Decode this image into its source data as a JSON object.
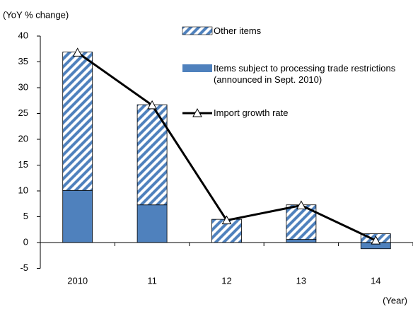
{
  "chart_data": {
    "type": "bar",
    "y_label": "(YoY % change)",
    "x_label": "(Year)",
    "categories": [
      "2010",
      "11",
      "12",
      "13",
      "14"
    ],
    "series": [
      {
        "name": "Items subject to processing trade restrictions (announced in Sept. 2010)",
        "type": "bar",
        "color": "#4f81bd",
        "values": [
          10.1,
          7.3,
          0,
          0.6,
          -1.2
        ]
      },
      {
        "name": "Other items",
        "type": "bar",
        "pattern": "hatch",
        "color": "#4f81bd",
        "values": [
          26.8,
          19.4,
          4.5,
          6.7,
          1.7
        ]
      },
      {
        "name": "Import growth rate",
        "type": "line",
        "color": "#000000",
        "values": [
          36.8,
          26.6,
          4.3,
          7.2,
          0.4
        ]
      }
    ],
    "ylim": [
      -5,
      40
    ],
    "yticks": [
      -5,
      0,
      5,
      10,
      15,
      20,
      25,
      30,
      35,
      40
    ]
  }
}
